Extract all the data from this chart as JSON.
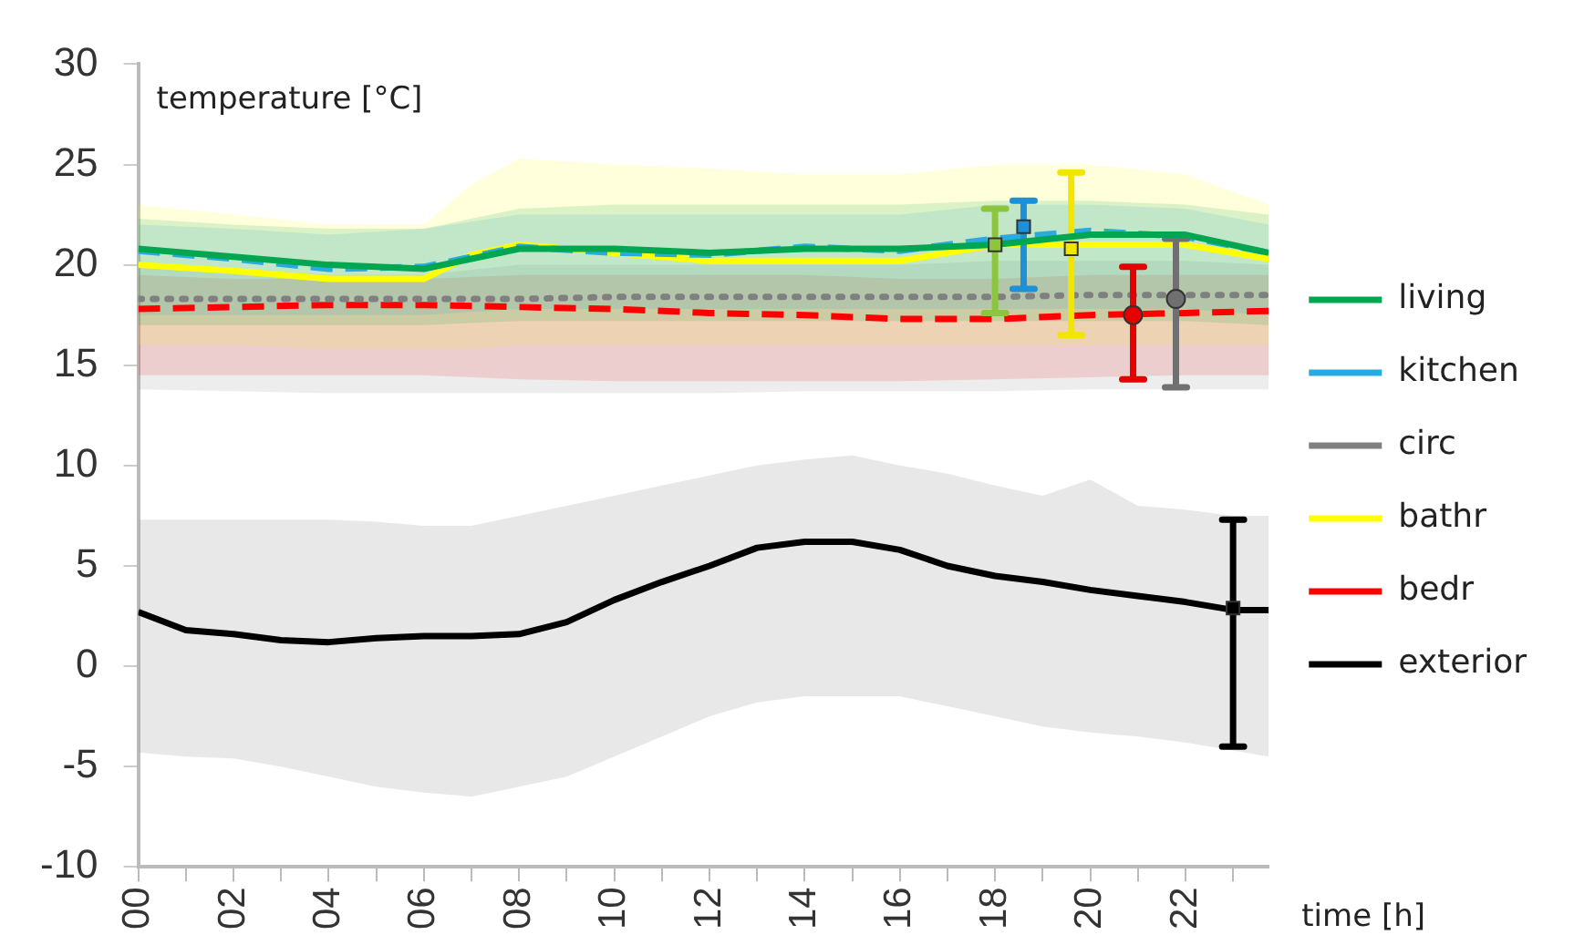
{
  "chart_data": {
    "type": "line",
    "xlabel": "time [h]",
    "ylabel": "temperature [°C]",
    "xlim": [
      0,
      23.75
    ],
    "ylim": [
      -10,
      30
    ],
    "yticks": [
      -10,
      -5,
      0,
      5,
      10,
      15,
      20,
      25,
      30
    ],
    "xticks": [
      {
        "value": 0,
        "label": "00"
      },
      {
        "value": 1,
        "label": null
      },
      {
        "value": 2,
        "label": "02"
      },
      {
        "value": 3,
        "label": null
      },
      {
        "value": 4,
        "label": "04"
      },
      {
        "value": 5,
        "label": null
      },
      {
        "value": 6,
        "label": "06"
      },
      {
        "value": 7,
        "label": null
      },
      {
        "value": 8,
        "label": "08"
      },
      {
        "value": 9,
        "label": null
      },
      {
        "value": 10,
        "label": "10"
      },
      {
        "value": 11,
        "label": null
      },
      {
        "value": 12,
        "label": "12"
      },
      {
        "value": 13,
        "label": null
      },
      {
        "value": 14,
        "label": "14"
      },
      {
        "value": 15,
        "label": null
      },
      {
        "value": 16,
        "label": "16"
      },
      {
        "value": 17,
        "label": null
      },
      {
        "value": 18,
        "label": "18"
      },
      {
        "value": 19,
        "label": null
      },
      {
        "value": 20,
        "label": "20"
      },
      {
        "value": 21,
        "label": null
      },
      {
        "value": 22,
        "label": "22"
      },
      {
        "value": 23,
        "label": null
      }
    ],
    "grid": false,
    "legend": "right",
    "marker": "none",
    "series": [
      {
        "name": "living",
        "color": "#00a650",
        "line_style": "solid",
        "x": [
          0,
          2,
          4,
          6,
          8,
          10,
          12,
          14,
          16,
          18,
          20,
          22,
          23.75
        ],
        "values": [
          20.8,
          20.4,
          20.0,
          19.8,
          20.8,
          20.8,
          20.6,
          20.8,
          20.8,
          21.0,
          21.5,
          21.5,
          20.6
        ],
        "lower": [
          17.0,
          17.0,
          17.0,
          17.0,
          17.2,
          17.2,
          17.2,
          17.2,
          17.2,
          17.2,
          17.2,
          17.2,
          17.0
        ],
        "upper": [
          22.3,
          22.0,
          21.8,
          21.8,
          22.8,
          23.0,
          23.0,
          23.0,
          23.0,
          23.2,
          23.2,
          23.0,
          22.5
        ]
      },
      {
        "name": "kitchen",
        "color": "#29abe2",
        "line_style": "dashed",
        "x": [
          0,
          2,
          4,
          6,
          8,
          10,
          12,
          14,
          16,
          18,
          20,
          22,
          23.75
        ],
        "values": [
          20.7,
          20.3,
          19.8,
          19.9,
          20.9,
          20.6,
          20.5,
          20.9,
          20.7,
          21.3,
          21.7,
          21.4,
          20.6
        ],
        "lower": [
          17.5,
          17.5,
          17.5,
          17.5,
          17.8,
          17.8,
          17.8,
          17.8,
          17.8,
          17.8,
          17.8,
          17.8,
          17.5
        ],
        "upper": [
          22.0,
          21.8,
          21.5,
          21.8,
          22.5,
          22.5,
          22.5,
          22.5,
          22.5,
          23.0,
          23.0,
          22.8,
          22.0
        ]
      },
      {
        "name": "circ",
        "color": "#808080",
        "line_style": "dotted",
        "x": [
          0,
          2,
          4,
          6,
          8,
          10,
          12,
          14,
          16,
          18,
          20,
          22,
          23.75
        ],
        "values": [
          18.3,
          18.3,
          18.3,
          18.3,
          18.3,
          18.4,
          18.4,
          18.4,
          18.4,
          18.4,
          18.5,
          18.5,
          18.5
        ],
        "lower": [
          13.8,
          13.7,
          13.6,
          13.6,
          13.6,
          13.6,
          13.6,
          13.7,
          13.7,
          13.7,
          13.8,
          13.8,
          13.8
        ],
        "upper": [
          20.0,
          19.8,
          19.5,
          19.5,
          20.0,
          20.0,
          20.0,
          20.0,
          20.0,
          20.2,
          20.2,
          20.2,
          20.0
        ]
      },
      {
        "name": "bathr",
        "color": "#ffff00",
        "line_style": "solid",
        "x": [
          0,
          2,
          4,
          6,
          7,
          8,
          10,
          12,
          14,
          16,
          18,
          20,
          22,
          23.75
        ],
        "values": [
          20.0,
          19.7,
          19.3,
          19.3,
          20.5,
          21.0,
          20.6,
          20.2,
          20.2,
          20.2,
          21.0,
          21.0,
          21.0,
          20.3
        ],
        "lower": [
          16.0,
          16.0,
          15.8,
          15.8,
          15.8,
          16.0,
          16.0,
          16.0,
          16.0,
          16.0,
          16.0,
          16.0,
          16.0,
          16.0
        ],
        "upper": [
          23.0,
          22.5,
          22.0,
          22.0,
          24.0,
          25.3,
          25.0,
          24.8,
          24.5,
          24.5,
          25.0,
          25.0,
          24.5,
          23.0
        ]
      },
      {
        "name": "bedr",
        "color": "#ff0000",
        "line_style": "dashed",
        "x": [
          0,
          2,
          4,
          6,
          8,
          10,
          12,
          14,
          16,
          18,
          20,
          22,
          23.75
        ],
        "values": [
          17.8,
          17.9,
          18.0,
          18.0,
          17.9,
          17.8,
          17.6,
          17.5,
          17.3,
          17.3,
          17.5,
          17.6,
          17.7
        ],
        "lower": [
          14.5,
          14.5,
          14.5,
          14.5,
          14.3,
          14.2,
          14.2,
          14.2,
          14.2,
          14.3,
          14.4,
          14.5,
          14.5
        ],
        "upper": [
          19.5,
          19.3,
          19.3,
          19.3,
          19.5,
          19.5,
          19.5,
          19.5,
          19.3,
          19.3,
          19.5,
          19.5,
          19.5
        ]
      },
      {
        "name": "exterior",
        "color": "#000000",
        "line_style": "solid",
        "x": [
          0,
          1,
          2,
          3,
          4,
          5,
          6,
          7,
          8,
          9,
          10,
          11,
          12,
          13,
          14,
          15,
          16,
          17,
          18,
          19,
          20,
          21,
          22,
          23,
          23.75
        ],
        "values": [
          2.7,
          1.8,
          1.6,
          1.3,
          1.2,
          1.4,
          1.5,
          1.5,
          1.6,
          2.2,
          3.3,
          4.2,
          5.0,
          5.9,
          6.2,
          6.2,
          5.8,
          5.0,
          4.5,
          4.2,
          3.8,
          3.5,
          3.2,
          2.8,
          2.8
        ],
        "lower": [
          -4.3,
          -4.5,
          -4.6,
          -5.0,
          -5.5,
          -6.0,
          -6.3,
          -6.5,
          -6.0,
          -5.5,
          -4.5,
          -3.5,
          -2.5,
          -1.8,
          -1.5,
          -1.5,
          -1.5,
          -2.0,
          -2.5,
          -3.0,
          -3.3,
          -3.5,
          -3.8,
          -4.2,
          -4.5
        ],
        "upper": [
          7.3,
          7.3,
          7.3,
          7.3,
          7.3,
          7.2,
          7.0,
          7.0,
          7.5,
          8.0,
          8.5,
          9.0,
          9.5,
          10.0,
          10.3,
          10.5,
          10.0,
          9.6,
          9.0,
          8.5,
          9.3,
          8.0,
          7.8,
          7.5,
          7.5
        ]
      },
      {
        "type": "scatter",
        "color": "#8cc63f",
        "marker": "square",
        "x": [
          18.0
        ],
        "values": [
          21.0
        ],
        "errors": [
          [
            17.6,
            22.8
          ]
        ]
      },
      {
        "type": "scatter",
        "color": "#1e90d8",
        "marker": "square",
        "x": [
          18.6
        ],
        "values": [
          21.9
        ],
        "errors": [
          [
            18.8,
            23.2
          ]
        ]
      },
      {
        "type": "scatter",
        "color": "#f2e600",
        "marker": "square",
        "x": [
          19.6
        ],
        "values": [
          20.8
        ],
        "errors": [
          [
            16.5,
            24.6
          ]
        ]
      },
      {
        "type": "scatter",
        "color": "#e60000",
        "marker": "circle",
        "x": [
          20.9
        ],
        "values": [
          17.5
        ],
        "errors": [
          [
            14.3,
            19.9
          ]
        ]
      },
      {
        "type": "scatter",
        "color": "#707070",
        "marker": "circle",
        "x": [
          21.8
        ],
        "values": [
          18.3
        ],
        "errors": [
          [
            13.9,
            21.3
          ]
        ]
      },
      {
        "type": "scatter",
        "color": "#000000",
        "marker": "square",
        "x": [
          23.0
        ],
        "values": [
          2.9
        ],
        "errors": [
          [
            -4.0,
            7.3
          ]
        ]
      }
    ]
  }
}
